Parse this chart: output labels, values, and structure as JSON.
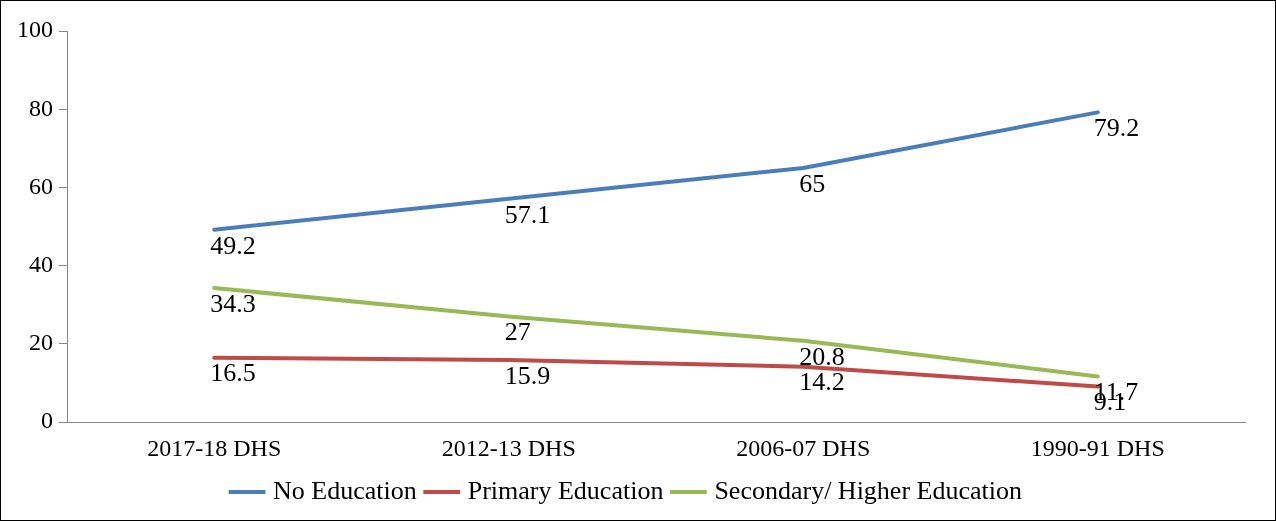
{
  "chart_data": {
    "type": "line",
    "categories": [
      "2017-18 DHS",
      "2012-13 DHS",
      "2006-07 DHS",
      "1990-91 DHS"
    ],
    "series": [
      {
        "name": "No Education",
        "color": "#4a7ebb",
        "values": [
          49.2,
          57.1,
          65,
          79.2
        ]
      },
      {
        "name": "Primary Education",
        "color": "#be4b48",
        "values": [
          16.5,
          15.9,
          14.2,
          9.1
        ]
      },
      {
        "name": "Secondary/ Higher Education",
        "color": "#98b954",
        "values": [
          34.3,
          27,
          20.8,
          11.7
        ]
      }
    ],
    "ylim": [
      0,
      100
    ],
    "yticks": [
      0,
      20,
      40,
      60,
      80,
      100
    ],
    "grid": false,
    "legend": "bottom",
    "marker": "none",
    "line_style": "solid",
    "data_labels": true
  }
}
